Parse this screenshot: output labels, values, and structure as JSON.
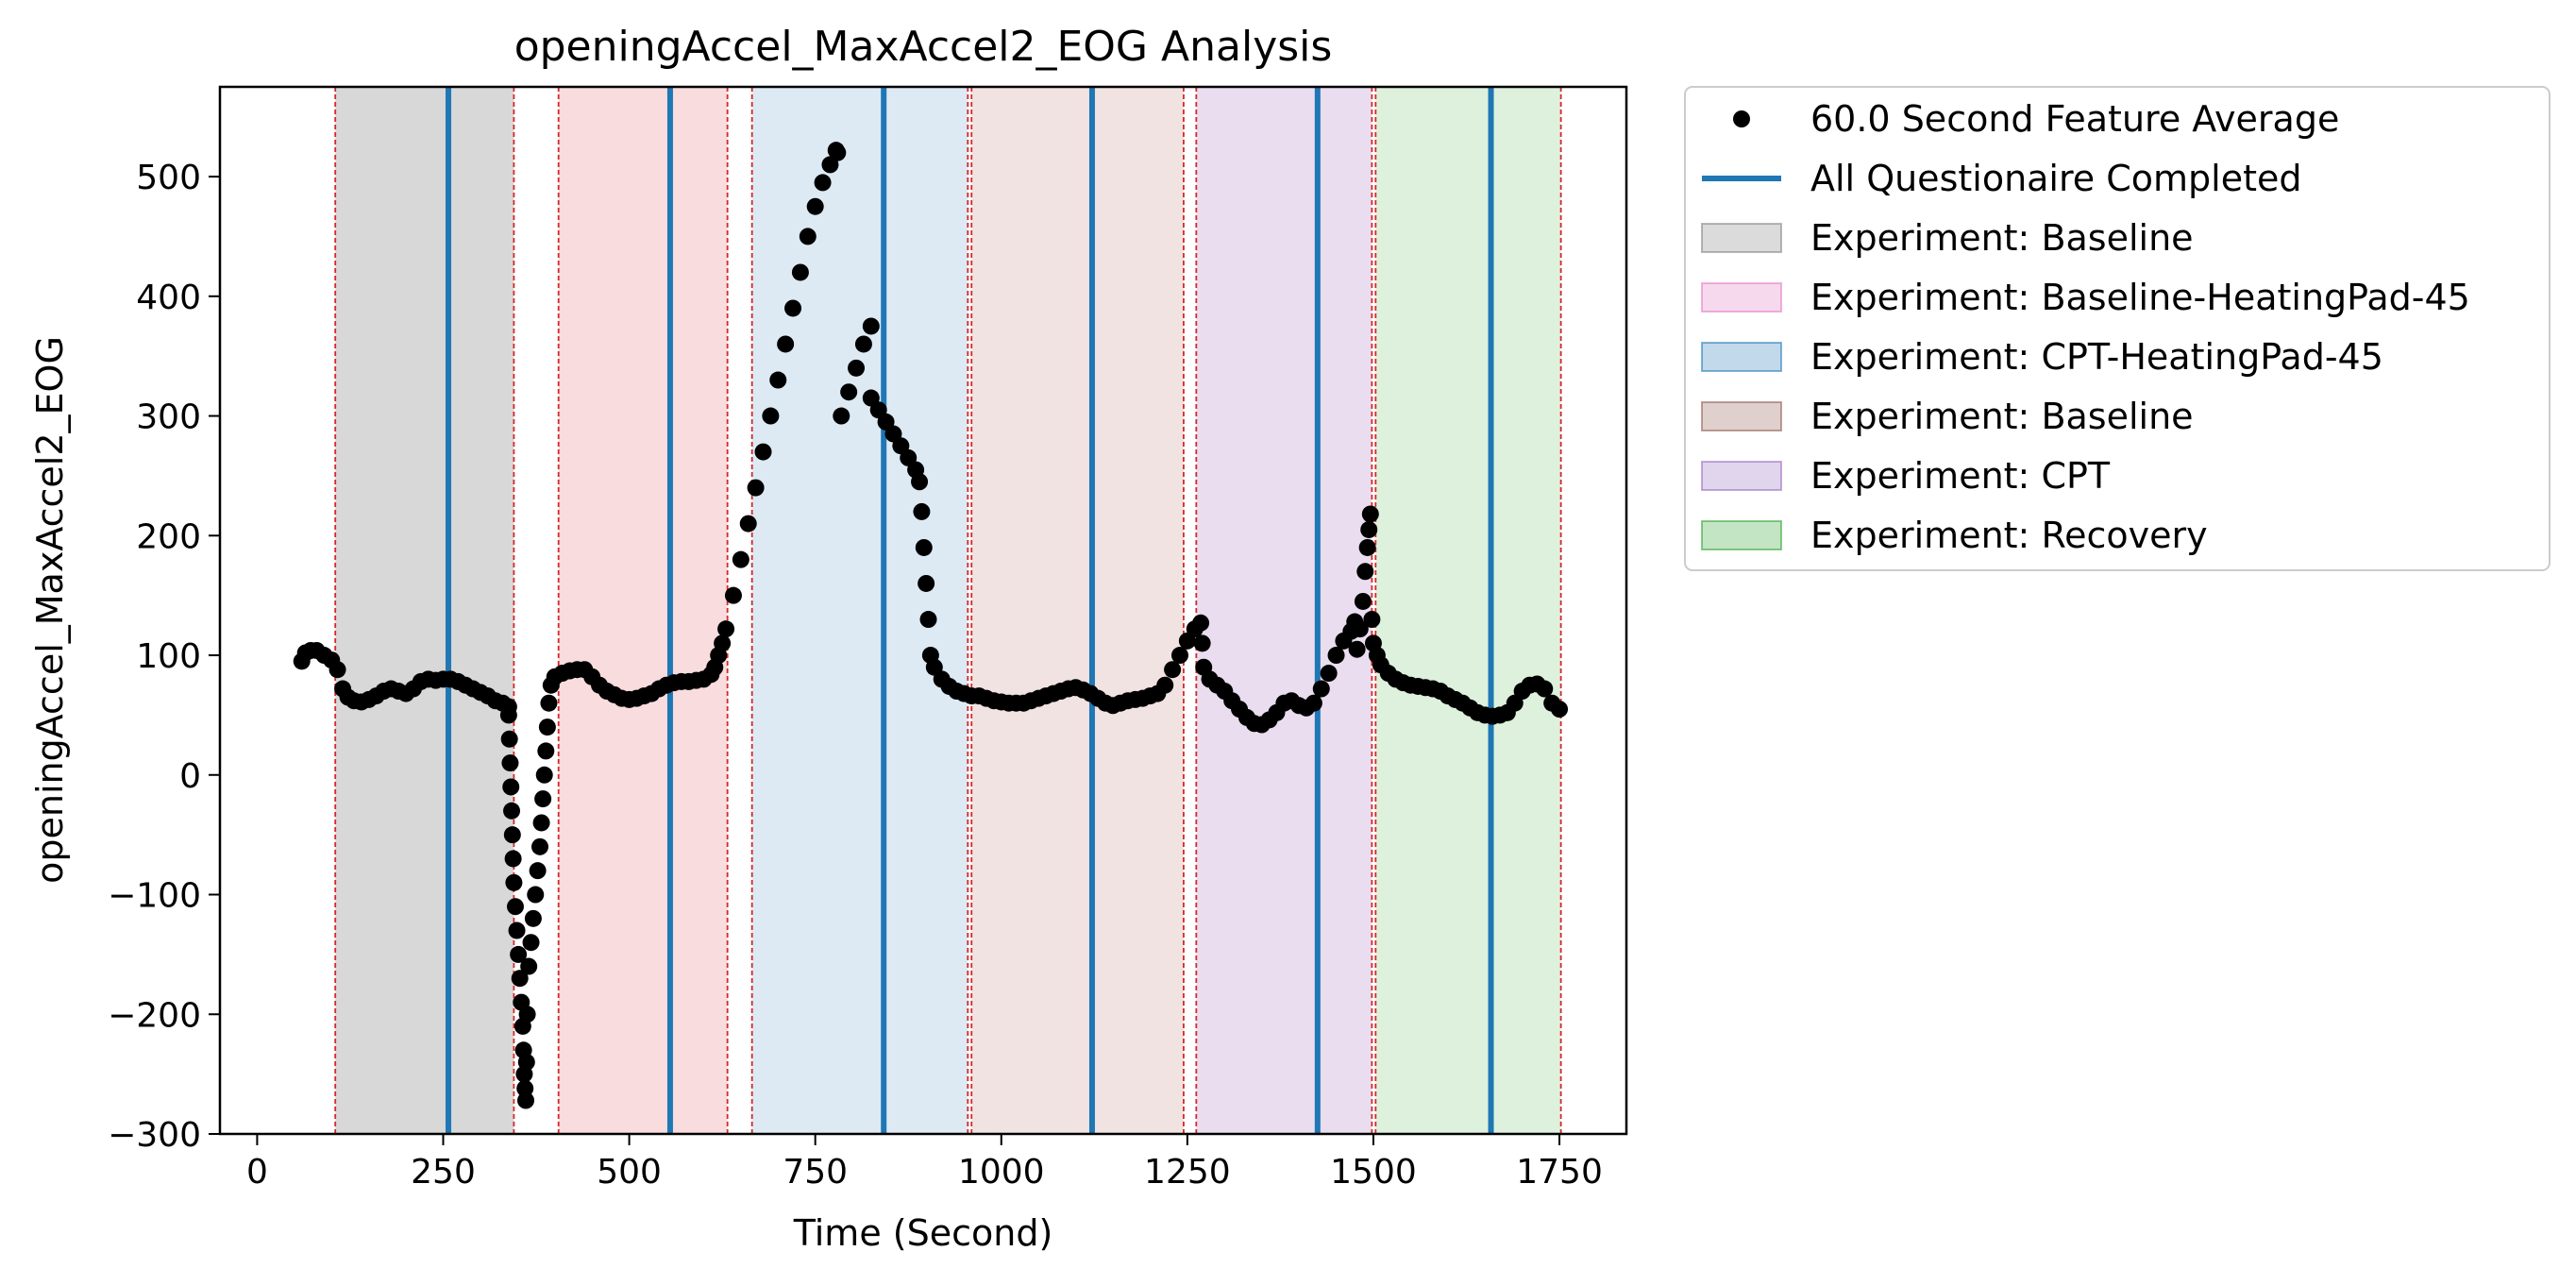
{
  "chart_data": {
    "type": "scatter",
    "title": "openingAccel_MaxAccel2_EOG Analysis",
    "xlabel": "Time (Second)",
    "ylabel": "openingAccel_MaxAccel2_EOG",
    "xlim": [
      -50,
      1840
    ],
    "ylim": [
      -300,
      575
    ],
    "xticks": [
      0,
      250,
      500,
      750,
      1000,
      1250,
      1500,
      1750
    ],
    "xtick_labels": [
      "0",
      "250",
      "500",
      "750",
      "1000",
      "1250",
      "1500",
      "1750"
    ],
    "yticks": [
      -300,
      -200,
      -100,
      0,
      100,
      200,
      300,
      400,
      500
    ],
    "ytick_labels": [
      "−300",
      "−200",
      "−100",
      "0",
      "100",
      "200",
      "300",
      "400",
      "500"
    ],
    "grid": false,
    "legend_position": "outside upper right",
    "legend": [
      {
        "label": "60.0 Second Feature Average",
        "kind": "marker",
        "color": "#000000"
      },
      {
        "label": "All Questionaire Completed",
        "kind": "line",
        "color": "#1f77b4"
      },
      {
        "label": "Experiment: Baseline",
        "kind": "patch",
        "color": "#7f7f7f"
      },
      {
        "label": "Experiment: Baseline-HeatingPad-45",
        "kind": "patch",
        "color": "#e377c2"
      },
      {
        "label": "Experiment: CPT-HeatingPad-45",
        "kind": "patch",
        "color": "#1f77b4"
      },
      {
        "label": "Experiment: Baseline",
        "kind": "patch",
        "color": "#8c564b"
      },
      {
        "label": "Experiment: CPT",
        "kind": "patch",
        "color": "#9467bd"
      },
      {
        "label": "Experiment: Recovery",
        "kind": "patch",
        "color": "#2ca02c"
      }
    ],
    "spans": [
      {
        "start": 105,
        "end": 345,
        "color": "#7f7f7f",
        "alpha": 0.3
      },
      {
        "start": 405,
        "end": 632,
        "color": "#e8787f",
        "alpha": 0.26
      },
      {
        "start": 665,
        "end": 955,
        "color": "#8fb8da",
        "alpha": 0.3
      },
      {
        "start": 960,
        "end": 1245,
        "color": "#c98f8a",
        "alpha": 0.25
      },
      {
        "start": 1262,
        "end": 1498,
        "color": "#b98fc9",
        "alpha": 0.3
      },
      {
        "start": 1503,
        "end": 1752,
        "color": "#8fd08f",
        "alpha": 0.3
      }
    ],
    "boundary_lines": [
      105,
      345,
      405,
      632,
      665,
      955,
      960,
      1245,
      1262,
      1498,
      1503,
      1752
    ],
    "questionnaire_lines": [
      257,
      555,
      842,
      1122,
      1425,
      1658
    ],
    "series": [
      {
        "name": "60.0 Second Feature Average",
        "color": "#000000",
        "points": [
          [
            60,
            95
          ],
          [
            65,
            102
          ],
          [
            72,
            104
          ],
          [
            80,
            104
          ],
          [
            90,
            100
          ],
          [
            100,
            96
          ],
          [
            108,
            88
          ],
          [
            115,
            72
          ],
          [
            122,
            65
          ],
          [
            130,
            62
          ],
          [
            140,
            61
          ],
          [
            150,
            63
          ],
          [
            160,
            66
          ],
          [
            170,
            70
          ],
          [
            180,
            72
          ],
          [
            190,
            70
          ],
          [
            200,
            68
          ],
          [
            210,
            72
          ],
          [
            220,
            78
          ],
          [
            230,
            80
          ],
          [
            240,
            79
          ],
          [
            250,
            80
          ],
          [
            260,
            80
          ],
          [
            270,
            78
          ],
          [
            280,
            75
          ],
          [
            290,
            72
          ],
          [
            300,
            69
          ],
          [
            310,
            66
          ],
          [
            320,
            62
          ],
          [
            330,
            60
          ],
          [
            338,
            57
          ],
          [
            338,
            50
          ],
          [
            339,
            30
          ],
          [
            340,
            10
          ],
          [
            341,
            -10
          ],
          [
            342,
            -30
          ],
          [
            343,
            -50
          ],
          [
            344,
            -70
          ],
          [
            345,
            -90
          ],
          [
            347,
            -110
          ],
          [
            349,
            -130
          ],
          [
            351,
            -150
          ],
          [
            353,
            -170
          ],
          [
            355,
            -190
          ],
          [
            357,
            -210
          ],
          [
            358,
            -230
          ],
          [
            359,
            -250
          ],
          [
            360,
            -262
          ],
          [
            361,
            -272
          ],
          [
            362,
            -240
          ],
          [
            363,
            -200
          ],
          [
            365,
            -160
          ],
          [
            368,
            -140
          ],
          [
            371,
            -120
          ],
          [
            374,
            -100
          ],
          [
            377,
            -80
          ],
          [
            380,
            -60
          ],
          [
            382,
            -40
          ],
          [
            384,
            -20
          ],
          [
            386,
            0
          ],
          [
            388,
            20
          ],
          [
            390,
            40
          ],
          [
            392,
            60
          ],
          [
            395,
            75
          ],
          [
            400,
            82
          ],
          [
            410,
            85
          ],
          [
            420,
            87
          ],
          [
            430,
            88
          ],
          [
            440,
            88
          ],
          [
            450,
            82
          ],
          [
            460,
            75
          ],
          [
            470,
            70
          ],
          [
            480,
            67
          ],
          [
            490,
            64
          ],
          [
            500,
            63
          ],
          [
            510,
            64
          ],
          [
            520,
            66
          ],
          [
            530,
            68
          ],
          [
            540,
            72
          ],
          [
            550,
            75
          ],
          [
            560,
            77
          ],
          [
            570,
            78
          ],
          [
            580,
            78
          ],
          [
            590,
            79
          ],
          [
            600,
            80
          ],
          [
            610,
            84
          ],
          [
            615,
            90
          ],
          [
            620,
            100
          ],
          [
            625,
            110
          ],
          [
            630,
            122
          ],
          [
            640,
            150
          ],
          [
            650,
            180
          ],
          [
            660,
            210
          ],
          [
            670,
            240
          ],
          [
            680,
            270
          ],
          [
            690,
            300
          ],
          [
            700,
            330
          ],
          [
            710,
            360
          ],
          [
            720,
            390
          ],
          [
            730,
            420
          ],
          [
            740,
            450
          ],
          [
            750,
            475
          ],
          [
            760,
            495
          ],
          [
            770,
            510
          ],
          [
            778,
            522
          ],
          [
            780,
            520
          ],
          [
            785,
            300
          ],
          [
            795,
            320
          ],
          [
            805,
            340
          ],
          [
            815,
            360
          ],
          [
            825,
            375
          ],
          [
            825,
            315
          ],
          [
            835,
            305
          ],
          [
            845,
            295
          ],
          [
            855,
            285
          ],
          [
            865,
            275
          ],
          [
            875,
            265
          ],
          [
            885,
            255
          ],
          [
            890,
            245
          ],
          [
            893,
            220
          ],
          [
            896,
            190
          ],
          [
            899,
            160
          ],
          [
            902,
            130
          ],
          [
            905,
            100
          ],
          [
            910,
            90
          ],
          [
            920,
            80
          ],
          [
            930,
            74
          ],
          [
            940,
            70
          ],
          [
            950,
            68
          ],
          [
            960,
            66
          ],
          [
            970,
            66
          ],
          [
            980,
            64
          ],
          [
            990,
            62
          ],
          [
            1000,
            61
          ],
          [
            1010,
            60
          ],
          [
            1020,
            60
          ],
          [
            1030,
            60
          ],
          [
            1040,
            62
          ],
          [
            1050,
            64
          ],
          [
            1060,
            66
          ],
          [
            1070,
            68
          ],
          [
            1080,
            70
          ],
          [
            1090,
            72
          ],
          [
            1100,
            73
          ],
          [
            1110,
            71
          ],
          [
            1120,
            68
          ],
          [
            1130,
            64
          ],
          [
            1140,
            60
          ],
          [
            1150,
            58
          ],
          [
            1160,
            60
          ],
          [
            1170,
            62
          ],
          [
            1180,
            63
          ],
          [
            1190,
            64
          ],
          [
            1200,
            66
          ],
          [
            1210,
            68
          ],
          [
            1220,
            75
          ],
          [
            1230,
            88
          ],
          [
            1240,
            100
          ],
          [
            1250,
            112
          ],
          [
            1260,
            122
          ],
          [
            1268,
            127
          ],
          [
            1270,
            110
          ],
          [
            1272,
            90
          ],
          [
            1280,
            80
          ],
          [
            1290,
            75
          ],
          [
            1300,
            70
          ],
          [
            1310,
            62
          ],
          [
            1320,
            55
          ],
          [
            1330,
            48
          ],
          [
            1340,
            43
          ],
          [
            1350,
            42
          ],
          [
            1360,
            46
          ],
          [
            1370,
            52
          ],
          [
            1380,
            60
          ],
          [
            1390,
            62
          ],
          [
            1400,
            58
          ],
          [
            1410,
            56
          ],
          [
            1420,
            60
          ],
          [
            1430,
            72
          ],
          [
            1440,
            85
          ],
          [
            1450,
            100
          ],
          [
            1460,
            112
          ],
          [
            1470,
            120
          ],
          [
            1475,
            128
          ],
          [
            1478,
            105
          ],
          [
            1482,
            122
          ],
          [
            1486,
            145
          ],
          [
            1489,
            170
          ],
          [
            1492,
            190
          ],
          [
            1494,
            205
          ],
          [
            1496,
            218
          ],
          [
            1498,
            130
          ],
          [
            1500,
            110
          ],
          [
            1505,
            100
          ],
          [
            1510,
            92
          ],
          [
            1520,
            85
          ],
          [
            1530,
            80
          ],
          [
            1540,
            77
          ],
          [
            1550,
            75
          ],
          [
            1560,
            74
          ],
          [
            1570,
            73
          ],
          [
            1580,
            72
          ],
          [
            1590,
            70
          ],
          [
            1600,
            66
          ],
          [
            1610,
            63
          ],
          [
            1620,
            60
          ],
          [
            1630,
            56
          ],
          [
            1640,
            52
          ],
          [
            1650,
            50
          ],
          [
            1660,
            49
          ],
          [
            1670,
            50
          ],
          [
            1680,
            52
          ],
          [
            1690,
            60
          ],
          [
            1700,
            70
          ],
          [
            1710,
            75
          ],
          [
            1720,
            76
          ],
          [
            1730,
            72
          ],
          [
            1740,
            60
          ],
          [
            1750,
            55
          ]
        ]
      }
    ]
  }
}
